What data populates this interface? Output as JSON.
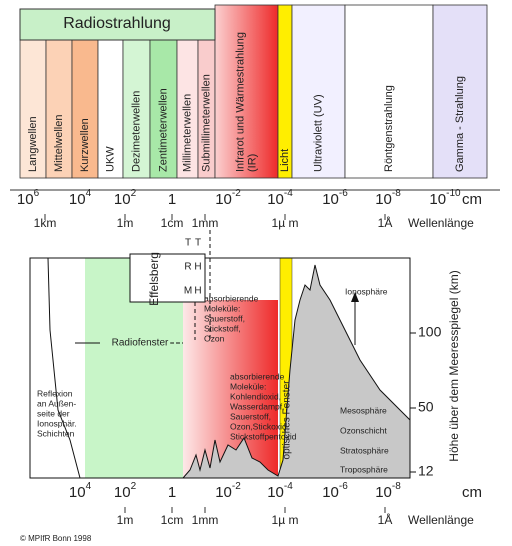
{
  "spectrum": {
    "radio_header": "Radiostrahlung",
    "bands": [
      [
        "Langwellen"
      ],
      [
        "Mittelwellen"
      ],
      [
        "Kurzwellen"
      ],
      [
        "UKW"
      ],
      [
        "Dezimeterwellen"
      ],
      [
        "Zentimeterwellen"
      ],
      [
        "Millimeterwellen"
      ],
      [
        "Submillimeterwellen"
      ],
      [
        "Infrarot und Wärmestrahlung",
        "(IR)"
      ],
      [
        "Licht"
      ],
      [
        "Ultraviolett  (UV)"
      ],
      [
        "Röntgenstrahlung"
      ],
      [
        "Gamma - Strahlung"
      ]
    ]
  },
  "top_axis": {
    "ticks": [
      {
        "base": "10",
        "exp": "6"
      },
      {
        "base": "10",
        "exp": "4"
      },
      {
        "base": "10",
        "exp": "2"
      },
      {
        "base": "1",
        "exp": ""
      },
      {
        "base": "10",
        "exp": "-2"
      },
      {
        "base": "10",
        "exp": "-4"
      },
      {
        "base": "10",
        "exp": "-6"
      },
      {
        "base": "10",
        "exp": "-8"
      },
      {
        "base": "10",
        "exp": "-10"
      }
    ],
    "unit": "cm",
    "marks": [
      "1km",
      "1m",
      "1cm",
      "1mm",
      "1µ m",
      "1Å"
    ],
    "label": "Wellenlänge"
  },
  "bottom_axis": {
    "ticks": [
      {
        "base": "10",
        "exp": "4"
      },
      {
        "base": "10",
        "exp": "2"
      },
      {
        "base": "1",
        "exp": ""
      },
      {
        "base": "10",
        "exp": "-2"
      },
      {
        "base": "10",
        "exp": "-4"
      },
      {
        "base": "10",
        "exp": "-6"
      },
      {
        "base": "10",
        "exp": "-8"
      }
    ],
    "unit": "cm",
    "marks": [
      "1m",
      "1cm",
      "1mm",
      "1µ m",
      "1Å"
    ],
    "label": "Wellenlänge"
  },
  "atmosphere": {
    "telescope": "Effelsberg",
    "telescope_codes": [
      [
        "T",
        "T"
      ],
      [
        "R",
        "H"
      ],
      [
        "M",
        "H"
      ]
    ],
    "radio_window": "Radiofenster",
    "optical_window": "optisches Fenster",
    "absorbers_high": [
      "absorbierende",
      "Moleküle:",
      "Sauerstoff,",
      "Stickstoff,",
      "Ozon"
    ],
    "absorbers_low": [
      "absorbierende",
      "Moleküle:",
      "Kohlendioxid,",
      "Wasserdampf,",
      "Sauerstoff,",
      "Ozon,Stickoxid,",
      "Stickstoffpentoxid"
    ],
    "reflection": [
      "Reflexion",
      "an Außen-",
      "seite der",
      "Ionosphär.",
      "Schichten"
    ],
    "layers": [
      "Ionosphäre",
      "Mesosphäre",
      "Ozonschicht",
      "Stratosphäre",
      "Troposphäre"
    ],
    "height_ticks": [
      "100",
      "50",
      "12"
    ],
    "height_label": "Höhe über dem Meeresspiegel  (km)"
  },
  "copyright": "© MPIfR Bonn 1998"
}
